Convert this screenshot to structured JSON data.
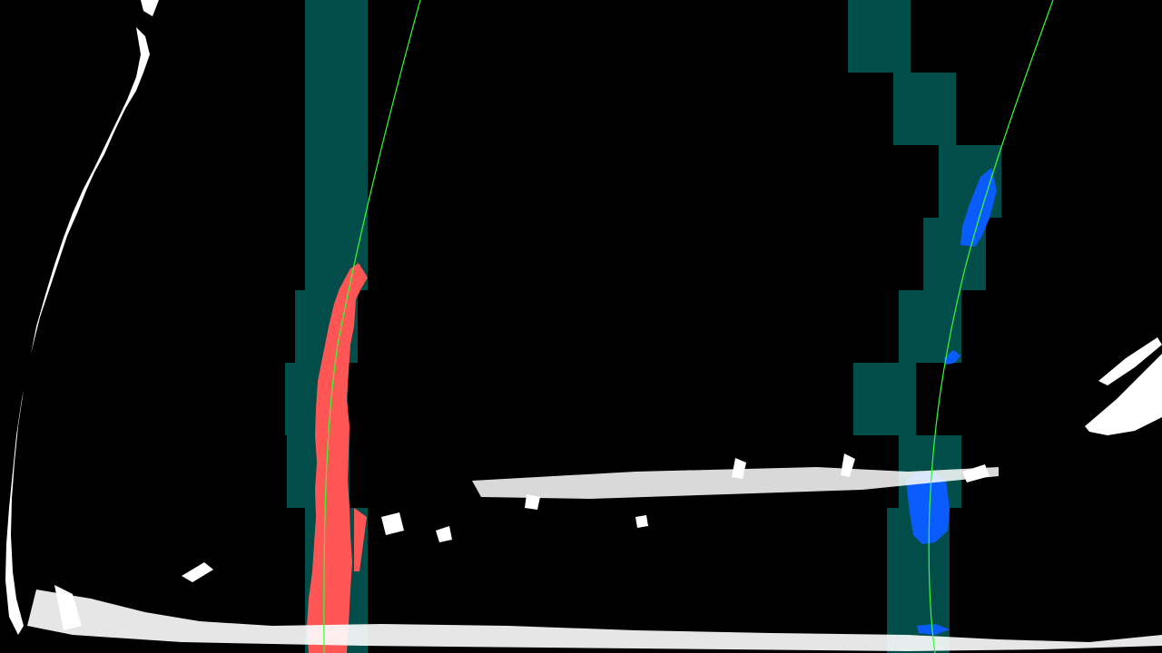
{
  "scene": {
    "description_free": true,
    "colors": {
      "background": "#000000",
      "search_window": "#004d4a",
      "left_lane_pixels": "#ff5555",
      "right_lane_pixels": "#0b5cff",
      "fit_curve": "#33ff33",
      "noise_pixels": "#ffffff"
    },
    "left_lane": {
      "window_count": 9
    },
    "right_lane": {
      "window_count": 9
    }
  }
}
